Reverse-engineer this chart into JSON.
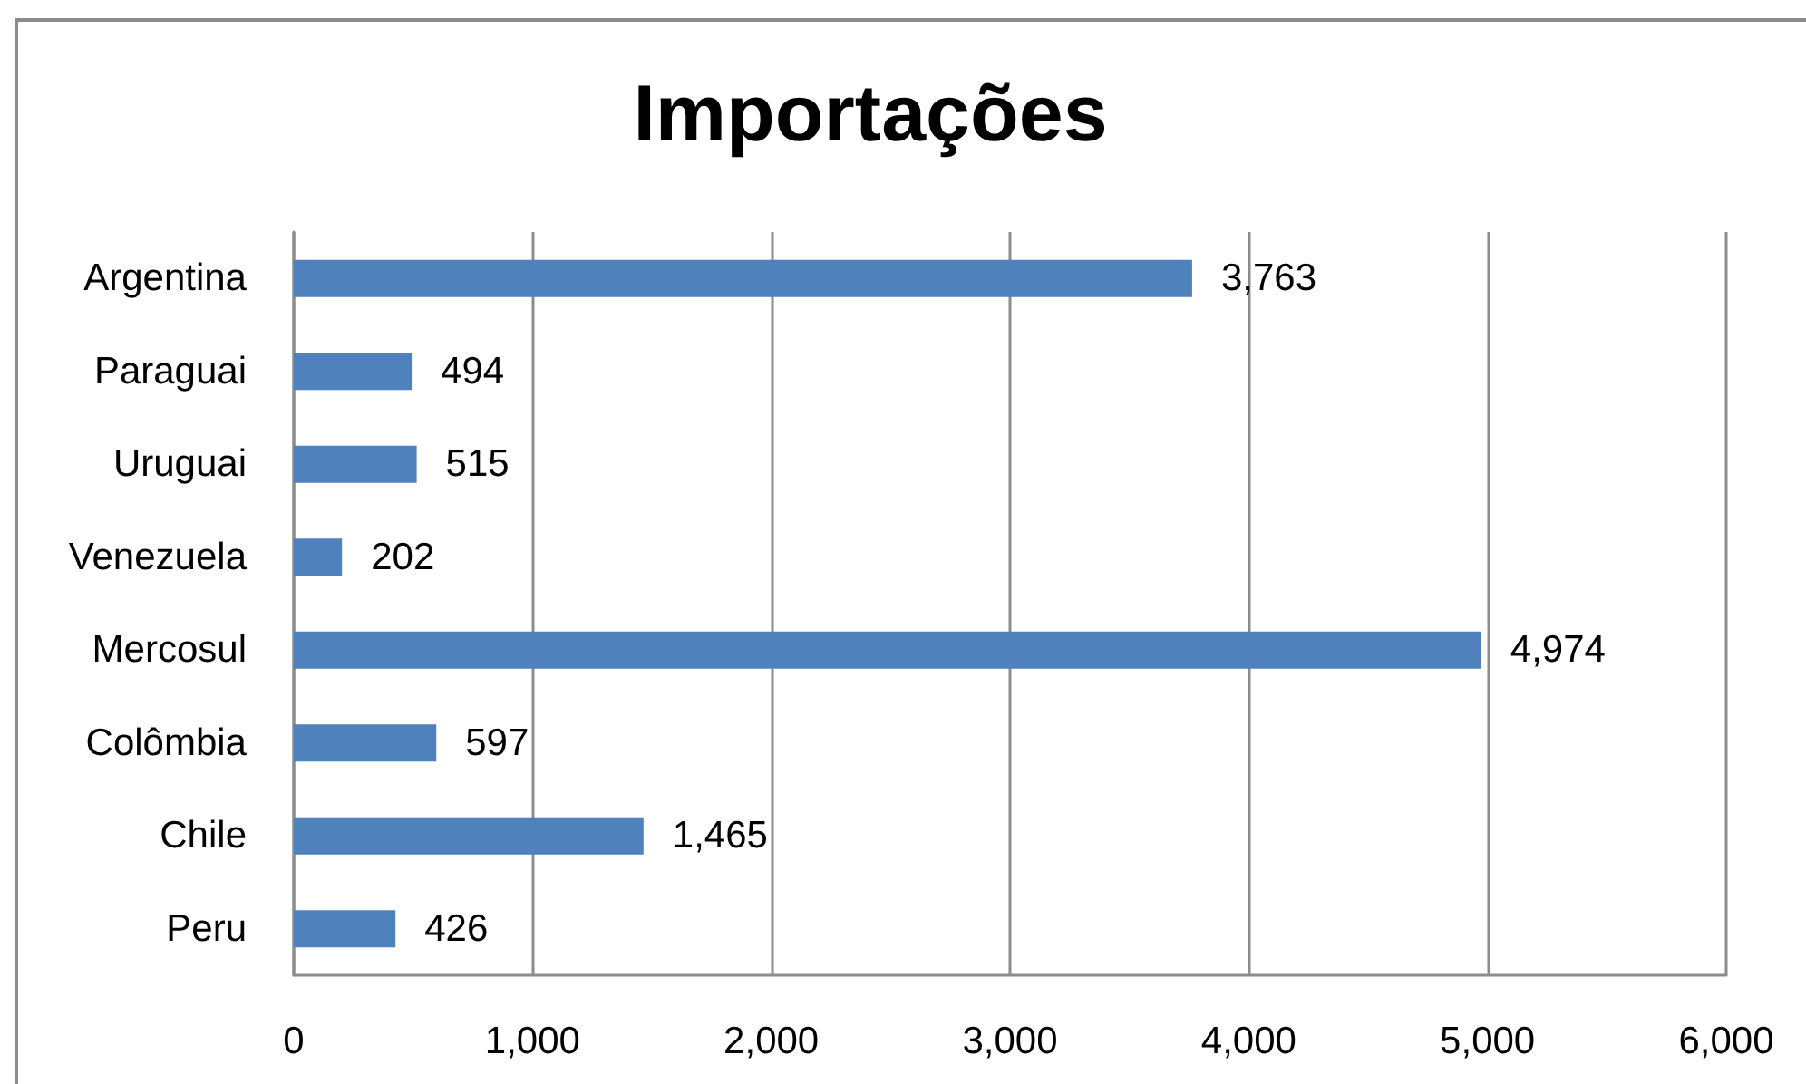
{
  "chart_data": {
    "type": "bar",
    "title": "Importações",
    "orientation": "horizontal",
    "categories": [
      "Argentina",
      "Paraguai",
      "Uruguai",
      "Venezuela",
      "Mercosul",
      "Colômbia",
      "Chile",
      "Peru"
    ],
    "values": [
      3763,
      494,
      515,
      202,
      4974,
      597,
      1465,
      426
    ],
    "value_labels": [
      "3,763",
      "494",
      "515",
      "202",
      "4,974",
      "597",
      "1,465",
      "426"
    ],
    "color": "#4f81bd",
    "xlim": [
      0,
      6000
    ],
    "xticks": [
      {
        "value": 0,
        "label": "0"
      },
      {
        "value": 1000,
        "label": "1,000"
      },
      {
        "value": 2000,
        "label": "2,000"
      },
      {
        "value": 3000,
        "label": "3,000"
      },
      {
        "value": 4000,
        "label": "4,000"
      },
      {
        "value": 5000,
        "label": "5,000"
      },
      {
        "value": 6000,
        "label": "6,000"
      }
    ],
    "grid": "x"
  }
}
